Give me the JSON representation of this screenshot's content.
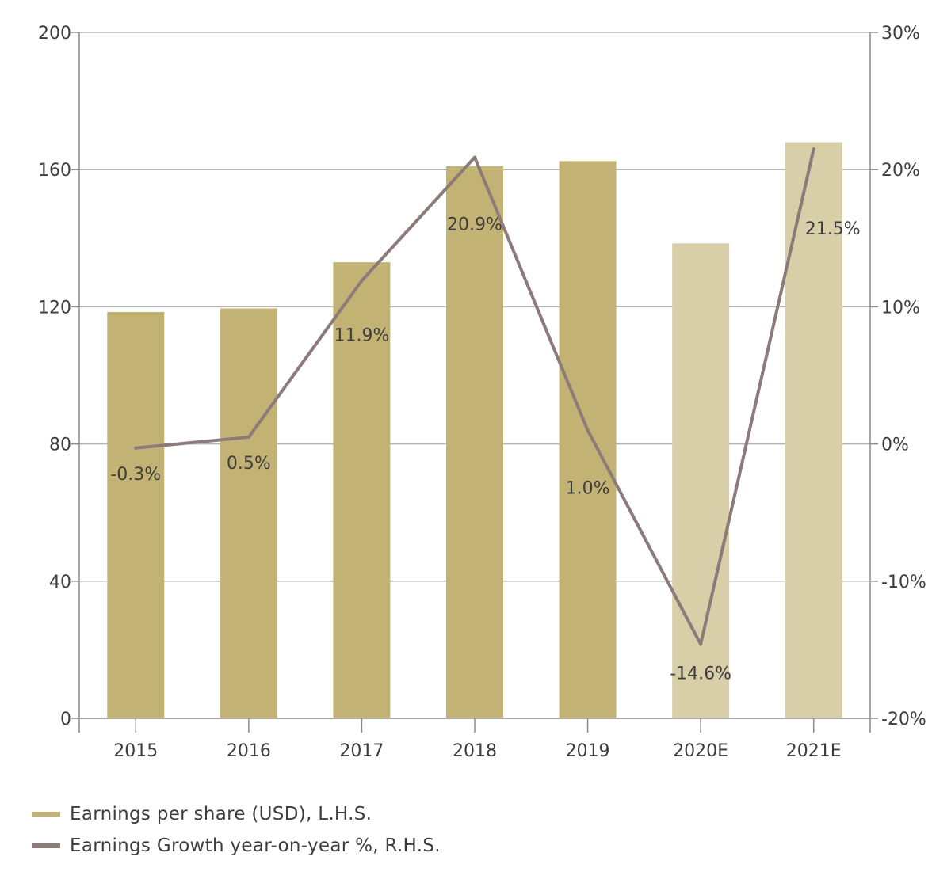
{
  "chart_data": {
    "type": "bar",
    "categories": [
      "2015",
      "2016",
      "2017",
      "2018",
      "2019",
      "2020E",
      "2021E"
    ],
    "series": [
      {
        "name": "Earnings per share (USD), L.H.S.",
        "kind": "bar",
        "axis": "left",
        "values": [
          118.5,
          119.5,
          133,
          161,
          162.5,
          138.5,
          168
        ],
        "colors": [
          "#c2b274",
          "#c2b274",
          "#c2b274",
          "#c2b274",
          "#c2b274",
          "#d8cfa9",
          "#d8cfa9"
        ]
      },
      {
        "name": "Earnings Growth year-on-year %, R.H.S.",
        "kind": "line",
        "axis": "right",
        "values": [
          -0.3,
          0.5,
          11.9,
          20.9,
          1.0,
          -14.6,
          21.5
        ],
        "labels": [
          "-0.3%",
          "0.5%",
          "11.9%",
          "20.9%",
          "1.0%",
          "-14.6%",
          "21.5%"
        ],
        "color": "#8c7b78"
      }
    ],
    "left_axis": {
      "ticks": [
        "0",
        "40",
        "80",
        "120",
        "160",
        "200"
      ],
      "tick_values": [
        0,
        40,
        80,
        120,
        160,
        200
      ],
      "ylim": [
        0,
        200
      ]
    },
    "right_axis": {
      "ticks": [
        "-20%",
        "-10%",
        "0%",
        "10%",
        "20%",
        "30%"
      ],
      "tick_values": [
        -20,
        -10,
        0,
        10,
        20,
        30
      ],
      "ylim": [
        -20,
        30
      ]
    },
    "grid": true,
    "legend_position": "bottom-left"
  },
  "legend": {
    "items": [
      {
        "label": "Earnings per share (USD), L.H.S.",
        "color": "#c2b274"
      },
      {
        "label": "Earnings Growth year-on-year %, R.H.S.",
        "color": "#8c7b78"
      }
    ]
  }
}
